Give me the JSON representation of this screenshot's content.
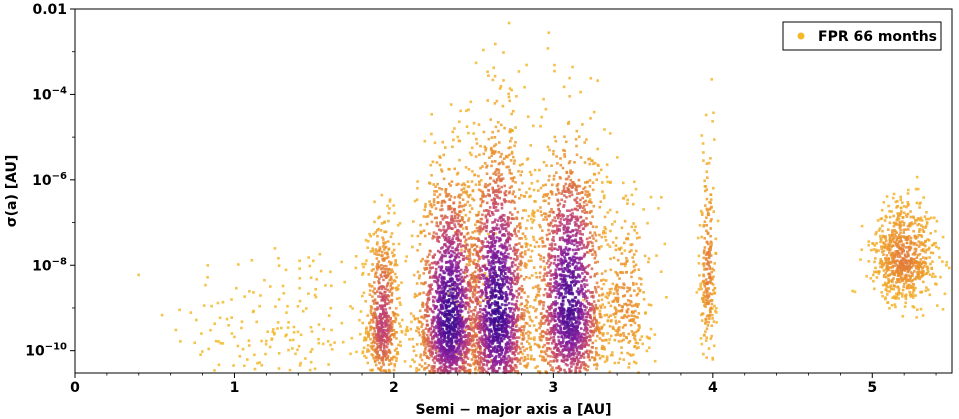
{
  "chart_data": {
    "type": "scatter",
    "xlabel": "Semi − major axis a [AU]",
    "ylabel": "σ(a) [AU]",
    "xlim": [
      0,
      5.5
    ],
    "ylim": [
      3e-11,
      0.01
    ],
    "yscale": "log",
    "xticks": [
      0,
      1,
      2,
      3,
      4,
      5
    ],
    "xtick_labels": [
      "0",
      "1",
      "2",
      "3",
      "4",
      "5"
    ],
    "yticks": [
      1e-10,
      1e-08,
      1e-06,
      0.0001,
      0.01
    ],
    "ytick_labels": [
      "10−10",
      "10−8",
      "10−6",
      "10−4",
      "0.01"
    ],
    "grid": false,
    "legend_position": "top-right",
    "series": [
      {
        "name": "FPR 66 months",
        "color": "#f5b82a",
        "density_colormap": [
          "#f5b82a",
          "#e8892f",
          "#c8476a",
          "#8a1f9e",
          "#3d0a91"
        ],
        "clusters": [
          {
            "a_center": 1.3,
            "a_spread": 0.35,
            "log_center": -9.5,
            "log_spread": 0.7,
            "count": 180,
            "density": 0.0
          },
          {
            "a_center": 1.93,
            "a_spread": 0.05,
            "log_center": -9.4,
            "log_spread": 0.75,
            "count": 650,
            "density": 0.55
          },
          {
            "a_center": 2.35,
            "a_spread": 0.1,
            "log_center": -9.3,
            "log_spread": 1.1,
            "count": 1900,
            "density": 1.0
          },
          {
            "a_center": 2.65,
            "a_spread": 0.1,
            "log_center": -9.2,
            "log_spread": 1.3,
            "count": 2100,
            "density": 1.0
          },
          {
            "a_center": 3.1,
            "a_spread": 0.11,
            "log_center": -9.0,
            "log_spread": 1.2,
            "count": 1900,
            "density": 0.95
          },
          {
            "a_center": 3.45,
            "a_spread": 0.08,
            "log_center": -8.9,
            "log_spread": 0.8,
            "count": 320,
            "density": 0.25
          },
          {
            "a_center": 3.97,
            "a_spread": 0.025,
            "log_center": -8.2,
            "log_spread": 0.9,
            "count": 230,
            "density": 0.3
          },
          {
            "a_center": 5.2,
            "a_spread": 0.1,
            "log_center": -7.9,
            "log_spread": 0.45,
            "count": 750,
            "density": 0.3
          }
        ]
      }
    ]
  }
}
